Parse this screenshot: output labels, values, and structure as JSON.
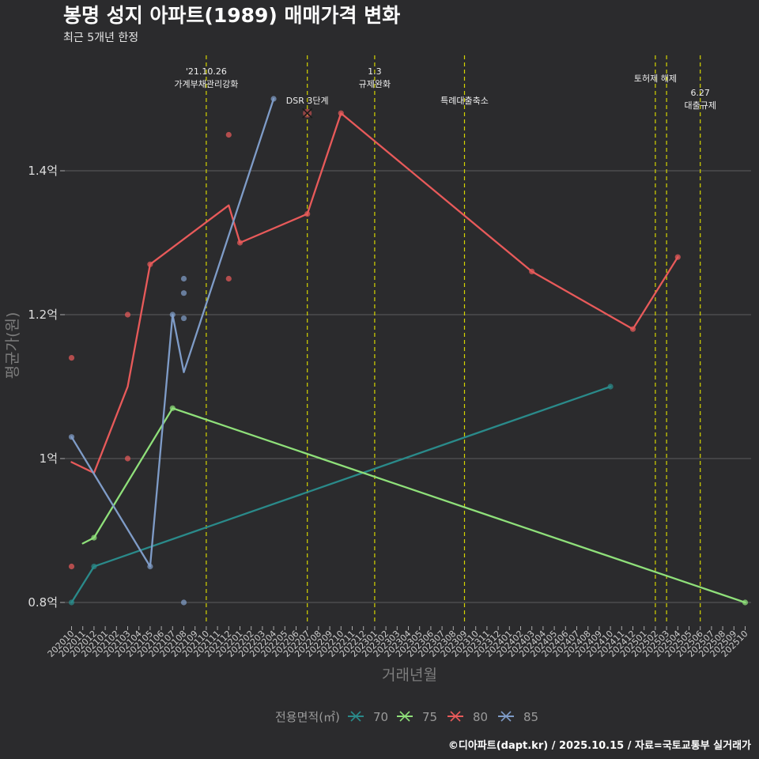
{
  "chart_data": {
    "type": "line",
    "title": "봉명 성지 아파트(1989) 매매가격 변화",
    "subtitle": "최근 5개년 한정",
    "xlabel": "거래년월",
    "ylabel": "평균가(원)",
    "categories": [
      "202010",
      "202011",
      "202012",
      "202101",
      "202102",
      "202103",
      "202104",
      "202105",
      "202106",
      "202107",
      "202108",
      "202109",
      "202110",
      "202111",
      "202112",
      "202201",
      "202202",
      "202203",
      "202204",
      "202205",
      "202206",
      "202207",
      "202208",
      "202209",
      "202210",
      "202211",
      "202212",
      "202301",
      "202302",
      "202303",
      "202304",
      "202305",
      "202306",
      "202307",
      "202308",
      "202309",
      "202310",
      "202311",
      "202312",
      "202401",
      "202402",
      "202403",
      "202404",
      "202405",
      "202406",
      "202407",
      "202408",
      "202409",
      "202410",
      "202411",
      "202412",
      "202501",
      "202502",
      "202503",
      "202504",
      "202505",
      "202506",
      "202507",
      "202508",
      "202509",
      "202510"
    ],
    "ylim": [
      0.77,
      1.585
    ],
    "yticks": [
      {
        "value": 0.8,
        "label": "0.8억"
      },
      {
        "value": 1.0,
        "label": "1억"
      },
      {
        "value": 1.2,
        "label": "1.2억"
      },
      {
        "value": 1.4,
        "label": "1.4억"
      }
    ],
    "unit": "억",
    "series": [
      {
        "name": "70",
        "color": "#2a8a8a",
        "line": [
          {
            "x": "202010",
            "y": 0.8
          },
          {
            "x": "202012",
            "y": 0.85
          },
          {
            "x": "202410",
            "y": 1.1
          }
        ],
        "points": [
          {
            "x": "202010",
            "y": 0.8
          },
          {
            "x": "202012",
            "y": 0.85
          },
          {
            "x": "202410",
            "y": 1.1
          }
        ]
      },
      {
        "name": "75",
        "color": "#8fe07a",
        "line": [
          {
            "x": "202011",
            "y": 0.882
          },
          {
            "x": "202012",
            "y": 0.89
          },
          {
            "x": "202107",
            "y": 1.07
          },
          {
            "x": "202510",
            "y": 0.8
          }
        ],
        "points": [
          {
            "x": "202012",
            "y": 0.89
          },
          {
            "x": "202107",
            "y": 1.07
          },
          {
            "x": "202510",
            "y": 0.8
          }
        ]
      },
      {
        "name": "80",
        "color": "#e85a5a",
        "line": [
          {
            "x": "202010",
            "y": 0.995
          },
          {
            "x": "202012",
            "y": 0.98
          },
          {
            "x": "202103",
            "y": 1.1
          },
          {
            "x": "202105",
            "y": 1.27
          },
          {
            "x": "202112",
            "y": 1.352
          },
          {
            "x": "202201",
            "y": 1.3
          },
          {
            "x": "202207",
            "y": 1.34
          },
          {
            "x": "202210",
            "y": 1.48
          },
          {
            "x": "202403",
            "y": 1.26
          },
          {
            "x": "202412",
            "y": 1.18
          },
          {
            "x": "202504",
            "y": 1.28
          }
        ],
        "points": [
          {
            "x": "202010",
            "y": 1.14
          },
          {
            "x": "202010",
            "y": 0.85
          },
          {
            "x": "202103",
            "y": 1.2
          },
          {
            "x": "202103",
            "y": 1.0
          },
          {
            "x": "202105",
            "y": 1.27
          },
          {
            "x": "202112",
            "y": 1.45
          },
          {
            "x": "202112",
            "y": 1.25
          },
          {
            "x": "202201",
            "y": 1.3
          },
          {
            "x": "202207",
            "y": 1.34
          },
          {
            "x": "202210",
            "y": 1.48
          },
          {
            "x": "202403",
            "y": 1.26
          },
          {
            "x": "202412",
            "y": 1.18
          },
          {
            "x": "202504",
            "y": 1.28
          }
        ],
        "cross": [
          {
            "x": "202207",
            "y": 1.48
          }
        ]
      },
      {
        "name": "85",
        "color": "#7f9cc8",
        "line": [
          {
            "x": "202010",
            "y": 1.03
          },
          {
            "x": "202105",
            "y": 0.85
          },
          {
            "x": "202107",
            "y": 1.2
          },
          {
            "x": "202108",
            "y": 1.12
          },
          {
            "x": "202204",
            "y": 1.5
          }
        ],
        "points": [
          {
            "x": "202010",
            "y": 1.03
          },
          {
            "x": "202105",
            "y": 0.85
          },
          {
            "x": "202107",
            "y": 1.2
          },
          {
            "x": "202108",
            "y": 1.25
          },
          {
            "x": "202108",
            "y": 1.23
          },
          {
            "x": "202108",
            "y": 1.195
          },
          {
            "x": "202108",
            "y": 0.8
          },
          {
            "x": "202204",
            "y": 1.5
          }
        ]
      }
    ],
    "events": [
      {
        "x": "202110",
        "lines": [
          "'21.10.26",
          "가계부채관리강화"
        ],
        "row": 0
      },
      {
        "x": "202207",
        "lines": [
          "DSR 3단계"
        ],
        "row": 2
      },
      {
        "x": "202301",
        "lines": [
          "1.3",
          "규제완화"
        ],
        "row": 0
      },
      {
        "x": "202309",
        "lines": [
          "특례대출축소"
        ],
        "row": 2
      },
      {
        "x": "202502",
        "lines": [
          "토허제 해제"
        ],
        "row": 1
      },
      {
        "x": "202503",
        "lines": [],
        "row": 1
      },
      {
        "x": "202506",
        "lines": [
          "6.27",
          "대출규제"
        ],
        "row": 3
      }
    ],
    "legend": {
      "title": "전용면적(㎡)",
      "position": "bottom"
    },
    "caption": "©디아파트(dapt.kr) / 2025.10.15 / 자료=국토교통부 실거래가"
  }
}
